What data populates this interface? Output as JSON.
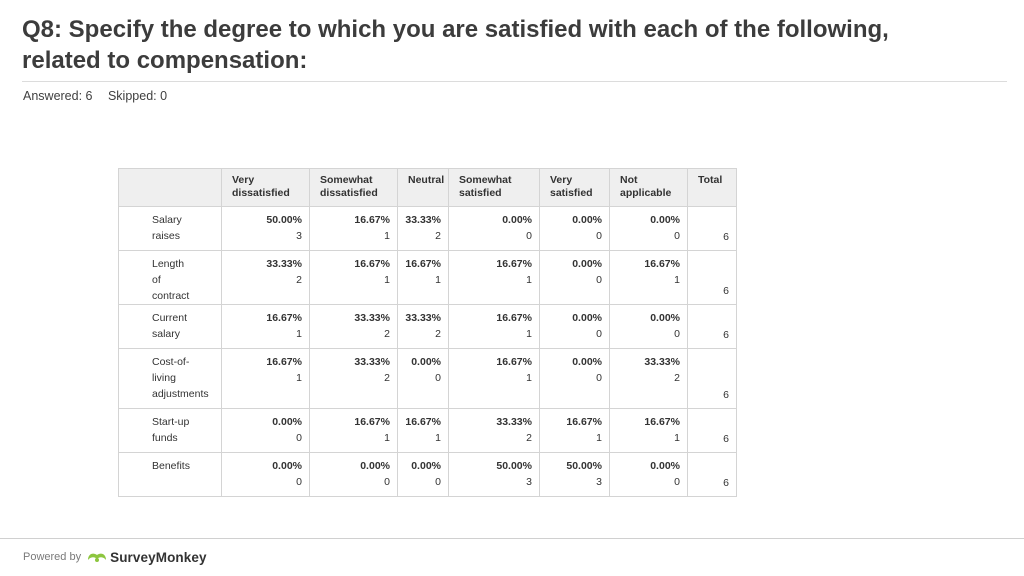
{
  "question": {
    "title": "Q8: Specify the degree to which you are satisfied with each of the following, related to compensation:",
    "answered": "Answered: 6",
    "skipped": "Skipped: 0"
  },
  "footer": {
    "powered_by": "Powered by",
    "brand": "SurveyMonkey",
    "logo_icon": "surveymonkey-logo-icon",
    "logo_color": "#8dc63f"
  },
  "chart_data": {
    "type": "table",
    "columns": [
      "Very dissatisfied",
      "Somewhat dissatisfied",
      "Neutral",
      "Somewhat satisfied",
      "Very satisfied",
      "Not applicable",
      "Total"
    ],
    "rows": [
      {
        "label": "Salary raises",
        "cells": [
          [
            "50.00%",
            "3"
          ],
          [
            "16.67%",
            "1"
          ],
          [
            "33.33%",
            "2"
          ],
          [
            "0.00%",
            "0"
          ],
          [
            "0.00%",
            "0"
          ],
          [
            "0.00%",
            "0"
          ]
        ],
        "total": "6"
      },
      {
        "label": "Length of contract",
        "cells": [
          [
            "33.33%",
            "2"
          ],
          [
            "16.67%",
            "1"
          ],
          [
            "16.67%",
            "1"
          ],
          [
            "16.67%",
            "1"
          ],
          [
            "0.00%",
            "0"
          ],
          [
            "16.67%",
            "1"
          ]
        ],
        "total": "6"
      },
      {
        "label": "Current salary",
        "cells": [
          [
            "16.67%",
            "1"
          ],
          [
            "33.33%",
            "2"
          ],
          [
            "33.33%",
            "2"
          ],
          [
            "16.67%",
            "1"
          ],
          [
            "0.00%",
            "0"
          ],
          [
            "0.00%",
            "0"
          ]
        ],
        "total": "6"
      },
      {
        "label": "Cost-of-living adjustments",
        "cells": [
          [
            "16.67%",
            "1"
          ],
          [
            "33.33%",
            "2"
          ],
          [
            "0.00%",
            "0"
          ],
          [
            "16.67%",
            "1"
          ],
          [
            "0.00%",
            "0"
          ],
          [
            "33.33%",
            "2"
          ]
        ],
        "total": "6"
      },
      {
        "label": "Start-up funds",
        "cells": [
          [
            "0.00%",
            "0"
          ],
          [
            "16.67%",
            "1"
          ],
          [
            "16.67%",
            "1"
          ],
          [
            "33.33%",
            "2"
          ],
          [
            "16.67%",
            "1"
          ],
          [
            "16.67%",
            "1"
          ]
        ],
        "total": "6"
      },
      {
        "label": "Benefits",
        "cells": [
          [
            "0.00%",
            "0"
          ],
          [
            "0.00%",
            "0"
          ],
          [
            "0.00%",
            "0"
          ],
          [
            "50.00%",
            "3"
          ],
          [
            "50.00%",
            "3"
          ],
          [
            "0.00%",
            "0"
          ]
        ],
        "total": "6"
      }
    ]
  }
}
